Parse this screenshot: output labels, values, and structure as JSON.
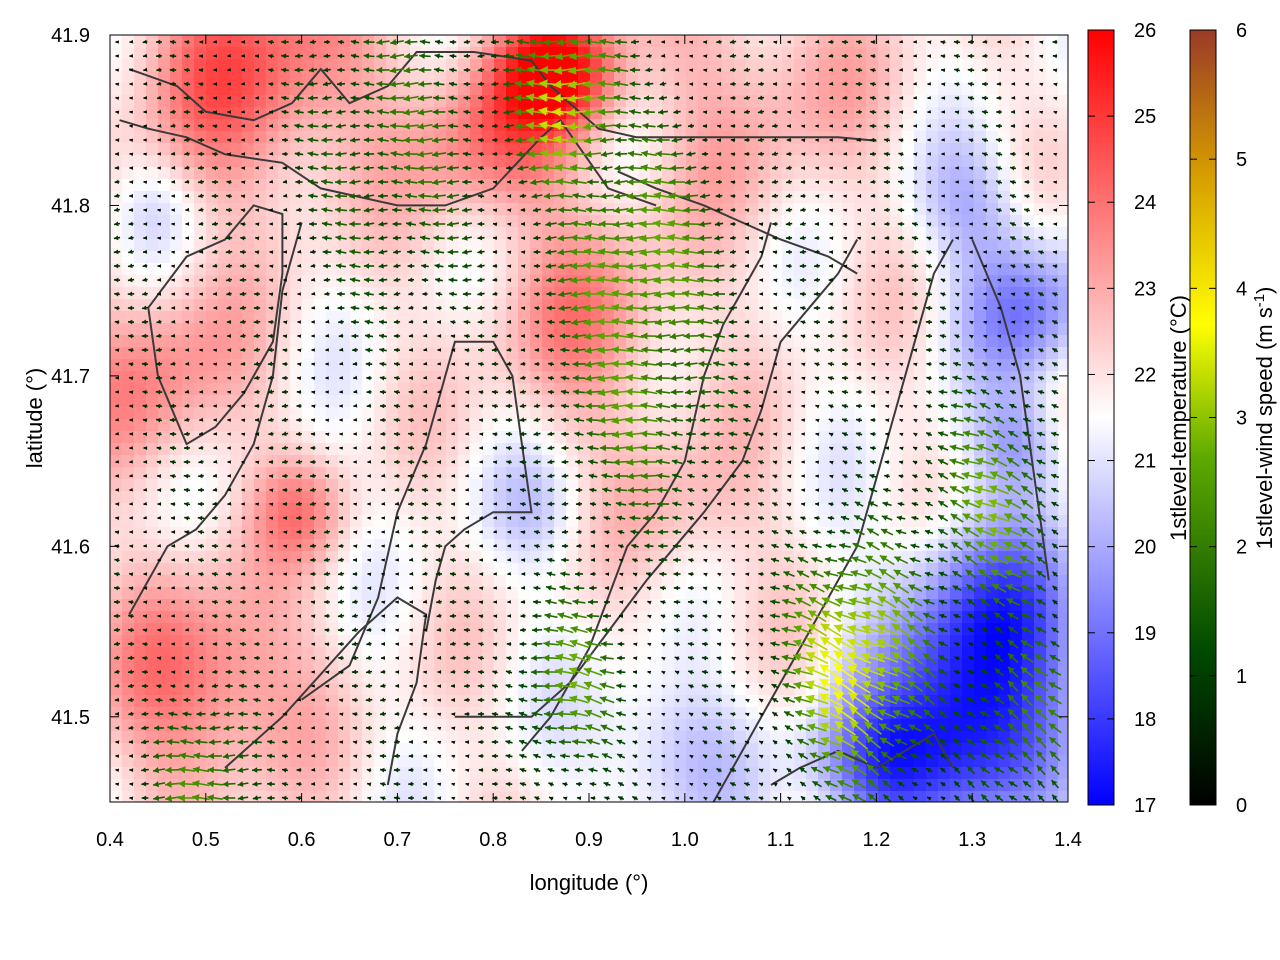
{
  "chart_data": {
    "type": "heatmap",
    "title": "",
    "xlabel": "longitude (°)",
    "ylabel": "latitude (°)",
    "xlim": [
      0.4,
      1.4
    ],
    "ylim": [
      41.45,
      41.9
    ],
    "x_ticks": [
      "0.4",
      "0.5",
      "0.6",
      "0.7",
      "0.8",
      "0.9",
      "1.0",
      "1.1",
      "1.2",
      "1.3",
      "1.4"
    ],
    "y_ticks": [
      "41.5",
      "41.6",
      "41.7",
      "41.8",
      "41.9"
    ],
    "grid": false,
    "temperature_colorbar": {
      "label": "1stlevel-temperature (°C)",
      "range": [
        17,
        26
      ],
      "ticks": [
        "17",
        "18",
        "19",
        "20",
        "21",
        "22",
        "23",
        "24",
        "25",
        "26"
      ],
      "colors": [
        "#0000ff",
        "#ffffff",
        "#ff0000"
      ]
    },
    "wind_colorbar": {
      "label_main": "1stlevel-wind speed (m s",
      "label_sup": "-1",
      "label_end": ")",
      "range": [
        0,
        6
      ],
      "ticks": [
        "0",
        "1",
        "2",
        "3",
        "4",
        "5",
        "6"
      ],
      "colors": [
        "#000000",
        "#005000",
        "#7ab800",
        "#ffff00",
        "#d4a000",
        "#9a3a28"
      ]
    },
    "temperature_blobs": [
      {
        "lon": 0.55,
        "lat": 41.88,
        "r": 0.12,
        "dT": 2.6
      },
      {
        "lon": 0.87,
        "lat": 41.88,
        "r": 0.06,
        "dT": 4.0
      },
      {
        "lon": 0.8,
        "lat": 41.84,
        "r": 0.08,
        "dT": 2.2
      },
      {
        "lon": 0.45,
        "lat": 41.7,
        "r": 0.09,
        "dT": 1.8
      },
      {
        "lon": 0.5,
        "lat": 41.52,
        "r": 0.1,
        "dT": 2.4
      },
      {
        "lon": 0.6,
        "lat": 41.62,
        "r": 0.05,
        "dT": 1.5
      },
      {
        "lon": 0.9,
        "lat": 41.73,
        "r": 0.1,
        "dT": 1.6
      },
      {
        "lon": 1.0,
        "lat": 41.62,
        "r": 0.08,
        "dT": 1.0
      },
      {
        "lon": 1.08,
        "lat": 41.87,
        "r": 0.12,
        "dT": 1.2
      },
      {
        "lon": 0.45,
        "lat": 41.8,
        "r": 0.05,
        "dT": -0.8
      },
      {
        "lon": 0.85,
        "lat": 41.62,
        "r": 0.06,
        "dT": -1.0
      },
      {
        "lon": 0.98,
        "lat": 41.48,
        "r": 0.08,
        "dT": -1.6
      },
      {
        "lon": 1.32,
        "lat": 41.55,
        "r": 0.1,
        "dT": -4.0
      },
      {
        "lon": 1.3,
        "lat": 41.48,
        "r": 0.08,
        "dT": -3.5
      },
      {
        "lon": 1.2,
        "lat": 41.47,
        "r": 0.07,
        "dT": -3.0
      },
      {
        "lon": 1.36,
        "lat": 41.74,
        "r": 0.07,
        "dT": -2.5
      },
      {
        "lon": 1.3,
        "lat": 41.8,
        "r": 0.06,
        "dT": -1.4
      },
      {
        "lon": 1.35,
        "lat": 41.66,
        "r": 0.05,
        "dT": -1.8
      }
    ],
    "wind_strong_zones": [
      {
        "lon": 0.88,
        "lat": 41.86,
        "r": 0.06,
        "speed": 3.6
      },
      {
        "lon": 0.7,
        "lat": 41.84,
        "r": 0.12,
        "speed": 1.8
      },
      {
        "lon": 0.95,
        "lat": 41.76,
        "r": 0.1,
        "speed": 2.8
      },
      {
        "lon": 0.95,
        "lat": 41.7,
        "r": 0.1,
        "speed": 2.4
      },
      {
        "lon": 1.18,
        "lat": 41.53,
        "r": 0.08,
        "speed": 3.8
      },
      {
        "lon": 1.32,
        "lat": 41.62,
        "r": 0.08,
        "speed": 2.6
      },
      {
        "lon": 1.35,
        "lat": 41.5,
        "r": 0.07,
        "speed": 2.2
      },
      {
        "lon": 0.5,
        "lat": 41.46,
        "r": 0.06,
        "speed": 2.4
      },
      {
        "lon": 0.88,
        "lat": 41.52,
        "r": 0.06,
        "speed": 2.6
      }
    ],
    "contours": [
      [
        [
          0.42,
          41.88
        ],
        [
          0.47,
          41.87
        ],
        [
          0.5,
          41.855
        ],
        [
          0.55,
          41.85
        ],
        [
          0.59,
          41.86
        ],
        [
          0.62,
          41.88
        ],
        [
          0.65,
          41.86
        ],
        [
          0.69,
          41.87
        ],
        [
          0.72,
          41.89
        ],
        [
          0.78,
          41.89
        ],
        [
          0.84,
          41.885
        ],
        [
          0.86,
          41.87
        ],
        [
          0.88,
          41.86
        ],
        [
          0.91,
          41.845
        ],
        [
          0.95,
          41.84
        ],
        [
          1.02,
          41.84
        ],
        [
          1.1,
          41.84
        ],
        [
          1.16,
          41.84
        ],
        [
          1.2,
          41.838
        ]
      ],
      [
        [
          0.41,
          41.85
        ],
        [
          0.44,
          41.845
        ],
        [
          0.48,
          41.84
        ],
        [
          0.52,
          41.83
        ],
        [
          0.58,
          41.825
        ],
        [
          0.62,
          41.81
        ],
        [
          0.66,
          41.805
        ],
        [
          0.7,
          41.8
        ],
        [
          0.75,
          41.8
        ],
        [
          0.8,
          41.81
        ],
        [
          0.85,
          41.84
        ],
        [
          0.87,
          41.85
        ],
        [
          0.92,
          41.81
        ],
        [
          0.97,
          41.8
        ]
      ],
      [
        [
          0.44,
          41.74
        ],
        [
          0.48,
          41.77
        ],
        [
          0.52,
          41.78
        ],
        [
          0.55,
          41.8
        ],
        [
          0.58,
          41.795
        ],
        [
          0.58,
          41.76
        ],
        [
          0.57,
          41.72
        ],
        [
          0.54,
          41.69
        ],
        [
          0.51,
          41.67
        ],
        [
          0.48,
          41.66
        ],
        [
          0.45,
          41.7
        ],
        [
          0.44,
          41.74
        ]
      ],
      [
        [
          0.6,
          41.79
        ],
        [
          0.58,
          41.75
        ],
        [
          0.57,
          41.7
        ],
        [
          0.55,
          41.66
        ],
        [
          0.52,
          41.63
        ],
        [
          0.49,
          41.61
        ],
        [
          0.46,
          41.6
        ],
        [
          0.44,
          41.58
        ],
        [
          0.42,
          41.56
        ]
      ],
      [
        [
          0.52,
          41.47
        ],
        [
          0.55,
          41.485
        ],
        [
          0.58,
          41.5
        ],
        [
          0.62,
          41.525
        ],
        [
          0.66,
          41.55
        ],
        [
          0.7,
          41.57
        ],
        [
          0.73,
          41.56
        ],
        [
          0.72,
          41.52
        ],
        [
          0.7,
          41.49
        ],
        [
          0.69,
          41.46
        ]
      ],
      [
        [
          0.6,
          41.51
        ],
        [
          0.65,
          41.53
        ],
        [
          0.68,
          41.57
        ],
        [
          0.7,
          41.62
        ],
        [
          0.73,
          41.66
        ],
        [
          0.76,
          41.72
        ],
        [
          0.8,
          41.72
        ],
        [
          0.82,
          41.7
        ],
        [
          0.83,
          41.66
        ],
        [
          0.84,
          41.62
        ],
        [
          0.8,
          41.62
        ],
        [
          0.77,
          41.61
        ],
        [
          0.75,
          41.6
        ],
        [
          0.74,
          41.58
        ],
        [
          0.73,
          41.55
        ]
      ],
      [
        [
          0.76,
          41.5
        ],
        [
          0.8,
          41.5
        ],
        [
          0.84,
          41.5
        ],
        [
          0.88,
          41.52
        ],
        [
          0.92,
          41.55
        ],
        [
          0.96,
          41.58
        ],
        [
          0.99,
          41.6
        ],
        [
          1.02,
          41.62
        ],
        [
          1.06,
          41.65
        ],
        [
          1.08,
          41.68
        ],
        [
          1.1,
          41.72
        ],
        [
          1.13,
          41.74
        ],
        [
          1.16,
          41.76
        ],
        [
          1.18,
          41.78
        ]
      ],
      [
        [
          0.83,
          41.48
        ],
        [
          0.86,
          41.5
        ],
        [
          0.88,
          41.52
        ],
        [
          0.9,
          41.54
        ],
        [
          0.92,
          41.57
        ],
        [
          0.94,
          41.6
        ],
        [
          0.97,
          41.62
        ],
        [
          1.0,
          41.65
        ],
        [
          1.02,
          41.7
        ],
        [
          1.04,
          41.73
        ],
        [
          1.06,
          41.75
        ],
        [
          1.08,
          41.77
        ],
        [
          1.09,
          41.79
        ]
      ],
      [
        [
          1.03,
          41.45
        ],
        [
          1.06,
          41.48
        ],
        [
          1.09,
          41.51
        ],
        [
          1.12,
          41.54
        ],
        [
          1.15,
          41.57
        ],
        [
          1.18,
          41.6
        ],
        [
          1.2,
          41.64
        ],
        [
          1.22,
          41.68
        ],
        [
          1.24,
          41.72
        ],
        [
          1.26,
          41.76
        ],
        [
          1.28,
          41.78
        ]
      ],
      [
        [
          1.09,
          41.46
        ],
        [
          1.12,
          41.47
        ],
        [
          1.16,
          41.48
        ],
        [
          1.2,
          41.47
        ],
        [
          1.23,
          41.48
        ],
        [
          1.26,
          41.49
        ],
        [
          1.28,
          41.47
        ]
      ],
      [
        [
          0.93,
          41.82
        ],
        [
          0.97,
          41.81
        ],
        [
          1.02,
          41.8
        ],
        [
          1.06,
          41.79
        ],
        [
          1.1,
          41.78
        ],
        [
          1.15,
          41.77
        ],
        [
          1.18,
          41.76
        ]
      ],
      [
        [
          1.3,
          41.78
        ],
        [
          1.33,
          41.74
        ],
        [
          1.35,
          41.7
        ],
        [
          1.36,
          41.66
        ],
        [
          1.37,
          41.62
        ],
        [
          1.38,
          41.58
        ]
      ]
    ]
  }
}
